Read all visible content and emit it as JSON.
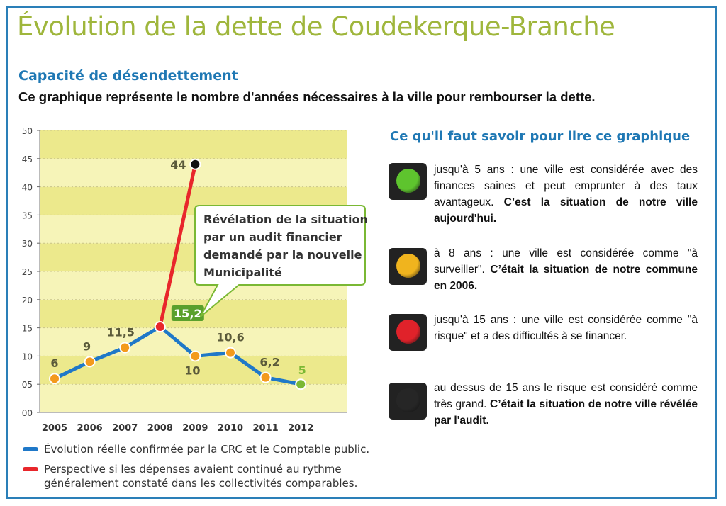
{
  "header": {
    "title": "Évolution de la dette de Coudekerque-Branche",
    "section_title": "Capacité de désendettement",
    "description": "Ce graphique représente le nombre d'années nécessaires à la ville pour rembourser la dette."
  },
  "chart_data": {
    "type": "line",
    "categories": [
      "2005",
      "2006",
      "2007",
      "2008",
      "2009",
      "2010",
      "2011",
      "2012"
    ],
    "series": [
      {
        "name": "Évolution réelle confirmée par la CRC et le Comptable public.",
        "color": "#1f78c8",
        "points": [
          {
            "x": "2005",
            "y": 6
          },
          {
            "x": "2006",
            "y": 9
          },
          {
            "x": "2007",
            "y": 11.5
          },
          {
            "x": "2008",
            "y": 15.2
          },
          {
            "x": "2009",
            "y": 10
          },
          {
            "x": "2010",
            "y": 10.6
          },
          {
            "x": "2011",
            "y": 6.2
          },
          {
            "x": "2012",
            "y": 5
          }
        ]
      },
      {
        "name": "Perspective si les dépenses avaient continué au rythme généralement constaté dans les collectivités comparables.",
        "color": "#e8262b",
        "points": [
          {
            "x": "2008",
            "y": 15.2
          },
          {
            "x": "2009",
            "y": 44
          }
        ]
      }
    ],
    "data_labels": [
      {
        "x": "2005",
        "y": 6,
        "text": "6"
      },
      {
        "x": "2006",
        "y": 9,
        "text": "9"
      },
      {
        "x": "2007",
        "y": 11.5,
        "text": "11,5"
      },
      {
        "x": "2008",
        "y": 15.2,
        "text": "15,2",
        "boxed": true
      },
      {
        "x": "2009",
        "y": 10,
        "text": "10"
      },
      {
        "x": "2010",
        "y": 10.6,
        "text": "10,6"
      },
      {
        "x": "2011",
        "y": 6.2,
        "text": "6,2"
      },
      {
        "x": "2012",
        "y": 5,
        "text": "5",
        "color": "#7ab834"
      },
      {
        "x": "2009",
        "y": 44,
        "text": "44"
      }
    ],
    "yticks": [
      "00",
      "05",
      "10",
      "15",
      "20",
      "25",
      "30",
      "35",
      "40",
      "45",
      "50"
    ],
    "ylim": [
      0,
      50
    ],
    "grid": true,
    "background_colors": {
      "band_light": "#f6f4b8",
      "band_dark": "#ece98c"
    },
    "annotation": {
      "text": [
        "Révélation de la situation",
        "par un audit financier",
        "demandé par la nouvelle",
        "Municipalité"
      ],
      "points_to": {
        "x": "2008.5",
        "y": 30
      }
    },
    "legend_position": "bottom"
  },
  "legend": [
    {
      "color": "#1f78c8",
      "lines": [
        "Évolution réelle confirmée par la CRC et le Comptable public."
      ]
    },
    {
      "color": "#e8262b",
      "lines": [
        "Perspective si les dépenses avaient continué au rythme",
        "généralement constaté dans les collectivités comparables."
      ]
    }
  ],
  "guide": {
    "title": "Ce qu'il faut savoir pour lire ce graphique",
    "items": [
      {
        "lamp_color": "#5ec42e",
        "text": "jusqu'à 5 ans : une ville est considérée avec des finances saines  et peut emprunter à des taux avantageux.",
        "bold": "C’est la situation de notre ville aujourd'hui."
      },
      {
        "lamp_color": "#f0b41e",
        "text": "à 8 ans : une ville est considérée comme \"à surveiller\".",
        "bold": "C’était la situation de notre commune en 2006."
      },
      {
        "lamp_color": "#e0222a",
        "text": "jusqu'à 15 ans : une ville est considérée comme \"à risque\" et a des difficultés à se financer.",
        "bold": ""
      },
      {
        "lamp_color": "#262626",
        "text": "au dessus de 15 ans le risque est considéré comme très grand.",
        "bold": "C’était la situation de notre ville révélée par l'audit."
      }
    ]
  }
}
